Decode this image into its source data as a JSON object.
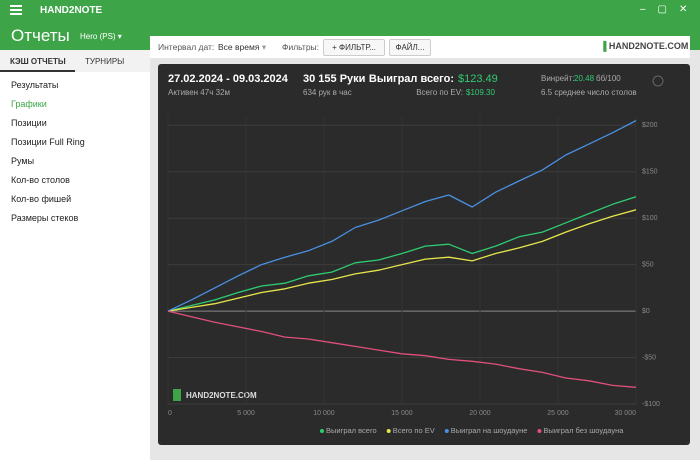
{
  "app": {
    "title": "HAND2NOTE",
    "header": "Отчеты",
    "player": "Hero (PS)"
  },
  "sidebar": {
    "tabs": [
      "КЭШ ОТЧЕТЫ",
      "ТУРНИРЫ"
    ],
    "items": [
      "Результаты",
      "Графики",
      "Позиции",
      "Позиции Full Ring",
      "Румы",
      "Кол-во столов",
      "Кол-во фишей",
      "Размеры стеков"
    ]
  },
  "toolbar": {
    "date_label": "Интервал дат:",
    "date_value": "Все время",
    "filters_label": "Фильтры:",
    "filter_button": "ФИЛЬТР...",
    "file_button": "ФАЙЛ...",
    "logo": "HAND2NOTE.COM"
  },
  "stats": {
    "date_range": "27.02.2024 - 09.03.2024",
    "active": "Активен 47ч 32м",
    "hands": "30 155 Руки",
    "hands_per_hour": "634 рук в час",
    "won_label": "Выиграл всего:",
    "won_value": "$123.49",
    "ev_label": "Всего по EV:",
    "ev_value": "$109.30",
    "winrate_label": "Винрейт:",
    "winrate_value": "20.48",
    "winrate_unit": "бб/100",
    "tables": "6.5 среднее число столов"
  },
  "chart_data": {
    "type": "line",
    "watermark": "HAND2NOTE.COM",
    "x": [
      0,
      1500,
      3000,
      4500,
      6000,
      7500,
      9000,
      10500,
      12000,
      13500,
      15000,
      16500,
      18000,
      19500,
      21000,
      22500,
      24000,
      25500,
      27000,
      28500,
      30000
    ],
    "series": [
      {
        "name": "Выиграл всего",
        "color": "#2ecc71",
        "values": [
          0,
          6,
          12,
          20,
          27,
          30,
          38,
          42,
          52,
          55,
          62,
          70,
          72,
          62,
          70,
          80,
          85,
          95,
          105,
          115,
          123
        ]
      },
      {
        "name": "Всего по EV",
        "color": "#e6e64a",
        "values": [
          0,
          4,
          8,
          14,
          20,
          24,
          30,
          34,
          40,
          44,
          50,
          56,
          58,
          54,
          62,
          68,
          75,
          85,
          94,
          102,
          109
        ]
      },
      {
        "name": "Выиграл на шоудауне",
        "color": "#4a90e2",
        "values": [
          0,
          12,
          25,
          38,
          50,
          58,
          65,
          75,
          90,
          98,
          108,
          118,
          125,
          112,
          128,
          140,
          152,
          168,
          180,
          192,
          205
        ]
      },
      {
        "name": "Выиграл без шоудауна",
        "color": "#e0507a",
        "values": [
          0,
          -6,
          -12,
          -17,
          -22,
          -28,
          -30,
          -34,
          -38,
          -42,
          -46,
          -48,
          -52,
          -54,
          -57,
          -62,
          -66,
          -72,
          -75,
          -80,
          -82
        ]
      }
    ],
    "xlim": [
      0,
      30000
    ],
    "ylim": [
      -100,
      210
    ],
    "xticks": [
      0,
      {
        "value": 5000,
        "label": "5 000"
      },
      {
        "value": 10000,
        "label": "10 000"
      },
      {
        "value": 15000,
        "label": "15 000"
      },
      {
        "value": 20000,
        "label": "20 000"
      },
      {
        "value": 25000,
        "label": "25 000"
      },
      {
        "value": 30000,
        "label": "30 000"
      }
    ],
    "yticks": [
      {
        "value": -100,
        "label": "-$100"
      },
      {
        "value": -50,
        "label": "-$50"
      },
      {
        "value": 0,
        "label": "$0"
      },
      {
        "value": 50,
        "label": "$50"
      },
      {
        "value": 100,
        "label": "$100"
      },
      {
        "value": 150,
        "label": "$150"
      },
      {
        "value": 200,
        "label": "$200"
      }
    ],
    "grid": true
  }
}
